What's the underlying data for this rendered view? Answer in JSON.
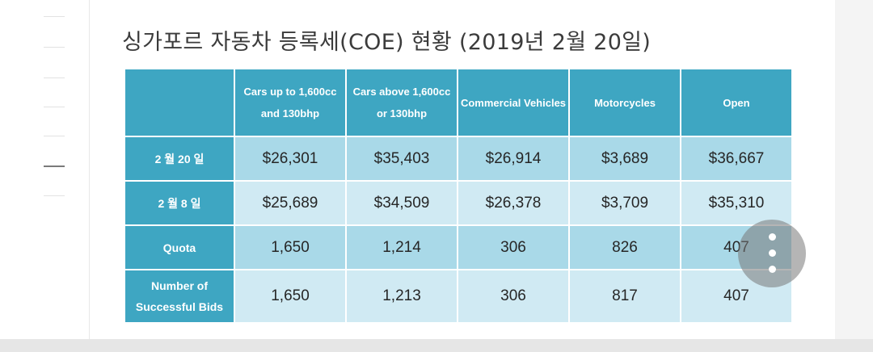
{
  "title": "싱가포르 자동차 등록세(COE) 현황 (2019년 2월 20일)",
  "table": {
    "headers": [
      "",
      "Cars up to 1,600cc and 130bhp",
      "Cars above 1,600cc or 130bhp",
      "Commercial Vehicles",
      "Motorcycles",
      "Open"
    ],
    "rows": [
      {
        "label": "2 월 20 일",
        "values": [
          "$26,301",
          "$35,403",
          "$26,914",
          "$3,689",
          "$36,667"
        ]
      },
      {
        "label": "2 월 8 일",
        "values": [
          "$25,689",
          "$34,509",
          "$26,378",
          "$3,709",
          "$35,310"
        ]
      },
      {
        "label": "Quota",
        "values": [
          "1,650",
          "1,214",
          "306",
          "826",
          "407"
        ]
      },
      {
        "label": "Number of Successful Bids",
        "values": [
          "1,650",
          "1,213",
          "306",
          "817",
          "407"
        ]
      }
    ]
  },
  "overlay": {
    "menu_icon": "more-vertical-icon"
  },
  "colors": {
    "header_bg": "#3ea6c2",
    "row_dark": "#a9d9e8",
    "row_light": "#d0eaf3"
  }
}
